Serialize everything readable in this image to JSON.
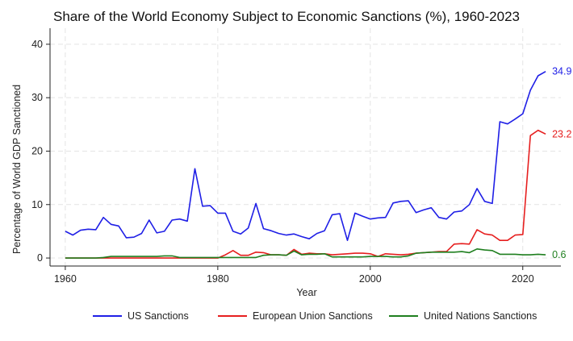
{
  "chart_data": {
    "type": "line",
    "title": "Share of the World Economy Subject to Economic Sanctions (%), 1960-2023",
    "xlabel": "Year",
    "ylabel": "Percentage of World GDP Sanctioned",
    "xlim": [
      1958,
      2025
    ],
    "ylim": [
      -1.5,
      43
    ],
    "x_ticks": [
      1960,
      1980,
      2000,
      2020
    ],
    "y_ticks": [
      0,
      10,
      20,
      30,
      40
    ],
    "grid": true,
    "legend_position": "bottom",
    "x": [
      1960,
      1961,
      1962,
      1963,
      1964,
      1965,
      1966,
      1967,
      1968,
      1969,
      1970,
      1971,
      1972,
      1973,
      1974,
      1975,
      1976,
      1977,
      1978,
      1979,
      1980,
      1981,
      1982,
      1983,
      1984,
      1985,
      1986,
      1987,
      1988,
      1989,
      1990,
      1991,
      1992,
      1993,
      1994,
      1995,
      1996,
      1997,
      1998,
      1999,
      2000,
      2001,
      2002,
      2003,
      2004,
      2005,
      2006,
      2007,
      2008,
      2009,
      2010,
      2011,
      2012,
      2013,
      2014,
      2015,
      2016,
      2017,
      2018,
      2019,
      2020,
      2021,
      2022,
      2023
    ],
    "series": [
      {
        "name": "US Sanctions",
        "color": "#1f1fe6",
        "end_label": "34.9",
        "values": [
          5.0,
          4.3,
          5.2,
          5.4,
          5.3,
          7.6,
          6.3,
          6.0,
          3.8,
          3.9,
          4.6,
          7.1,
          4.7,
          5.0,
          7.1,
          7.3,
          6.9,
          16.7,
          9.7,
          9.8,
          8.4,
          8.4,
          5.0,
          4.5,
          5.6,
          10.2,
          5.5,
          5.1,
          4.6,
          4.3,
          4.5,
          4.0,
          3.6,
          4.6,
          5.1,
          8.1,
          8.3,
          3.3,
          8.4,
          7.8,
          7.3,
          7.5,
          7.6,
          10.3,
          10.6,
          10.7,
          8.5,
          9.0,
          9.4,
          7.6,
          7.3,
          8.6,
          8.8,
          10.0,
          13.0,
          10.6,
          10.2,
          25.5,
          25.1,
          26.0,
          27.0,
          31.4,
          34.1,
          34.9
        ]
      },
      {
        "name": "European Union Sanctions",
        "color": "#e61f1f",
        "end_label": "23.2",
        "values": [
          0,
          0,
          0,
          0,
          0,
          0,
          0,
          0,
          0,
          0,
          0,
          0,
          0,
          0,
          0,
          0,
          0,
          0,
          0,
          0,
          0,
          0.6,
          1.4,
          0.5,
          0.5,
          1.1,
          1.0,
          0.6,
          0.6,
          0.5,
          1.6,
          0.7,
          0.9,
          0.8,
          0.8,
          0.6,
          0.7,
          0.8,
          0.9,
          0.9,
          0.8,
          0.3,
          0.8,
          0.7,
          0.6,
          0.7,
          0.9,
          1.0,
          1.1,
          1.2,
          1.2,
          2.6,
          2.7,
          2.6,
          5.3,
          4.5,
          4.3,
          3.3,
          3.3,
          4.3,
          4.4,
          22.9,
          23.9,
          23.2
        ]
      },
      {
        "name": "United Nations Sanctions",
        "color": "#1f7f1f",
        "end_label": "0.6",
        "values": [
          0,
          0,
          0,
          0,
          0,
          0.1,
          0.3,
          0.3,
          0.3,
          0.3,
          0.3,
          0.3,
          0.3,
          0.4,
          0.4,
          0.1,
          0.1,
          0.1,
          0.1,
          0.1,
          0.1,
          0.1,
          0.1,
          0.1,
          0.1,
          0.1,
          0.5,
          0.6,
          0.6,
          0.5,
          1.3,
          0.6,
          0.7,
          0.7,
          0.8,
          0.2,
          0.2,
          0.2,
          0.2,
          0.2,
          0.3,
          0.3,
          0.3,
          0.2,
          0.2,
          0.4,
          0.9,
          1.0,
          1.1,
          1.1,
          1.1,
          1.1,
          1.2,
          1.0,
          1.7,
          1.5,
          1.4,
          0.7,
          0.7,
          0.7,
          0.6,
          0.6,
          0.7,
          0.6
        ]
      }
    ]
  }
}
